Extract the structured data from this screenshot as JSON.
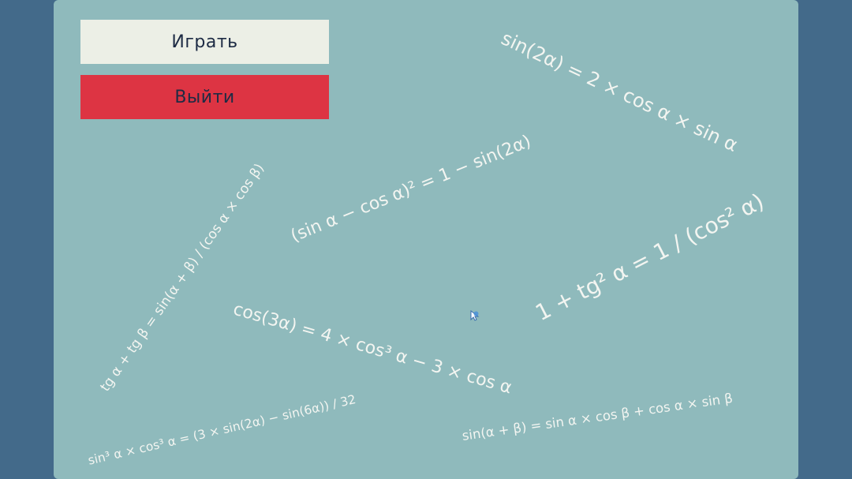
{
  "menu": {
    "play_label": "Играть",
    "exit_label": "Выйти"
  },
  "formulas": {
    "sin_double": "sin(2α) = 2 × cos α × sin α",
    "sin_minus_cos_sq": "(sin α − cos α)² = 1 − sin(2α)",
    "one_plus_tg_sq": "1 + tg² α = 1 / (cos² α)",
    "tg_sum": "tg α + tg β = sin(α + β) / (cos α × cos β)",
    "cos_triple": "cos(3α) = 4 × cos³ α − 3 × cos α",
    "sin_cube_cos_cube": "sin³ α × cos³ α = (3 × sin(2α) − sin(6α)) / 32",
    "sin_sum": "sin(α + β) = sin α × cos β + cos α × sin β"
  },
  "colors": {
    "background": "#436a8a",
    "panel": "#8fbabc",
    "play_button": "#ecefe6",
    "exit_button": "#dd3443",
    "formula_text": "#f3f5f1"
  }
}
